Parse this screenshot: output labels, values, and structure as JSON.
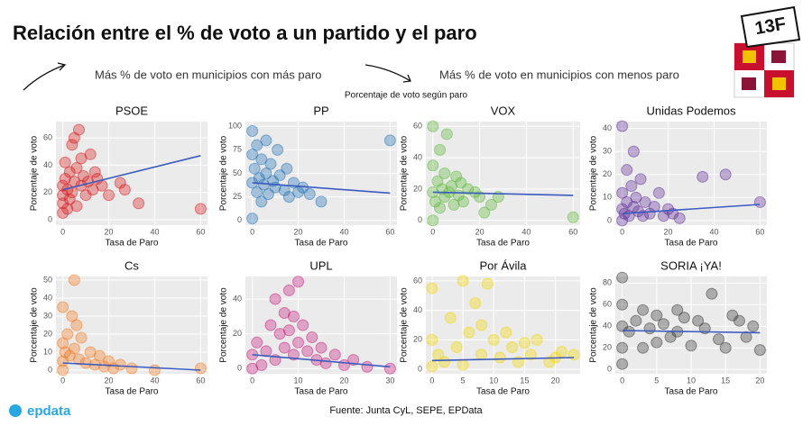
{
  "header": {
    "title": "Relación entre el % de voto a un partido y el paro",
    "note_left": "Más % de voto en municipios con más paro",
    "note_right": "Más % de voto en municipios con menos paro",
    "figure_title": "Porcentaje de voto según paro",
    "logo": "13F"
  },
  "footer": {
    "source": "Fuente: Junta CyL, SEPE, EPData",
    "brand": "epdata"
  },
  "chart_data": [
    {
      "type": "scatter",
      "title": "PSOE",
      "xlabel": "Tasa de Paro",
      "ylabel": "Porcentaje de voto",
      "color": "#d7191c",
      "xlim": [
        -3,
        63
      ],
      "xticks": [
        0,
        20,
        40,
        60
      ],
      "ylim": [
        -4,
        72
      ],
      "yticks": [
        0,
        20,
        40,
        60
      ],
      "x": [
        0,
        0,
        0,
        0,
        1,
        1,
        2,
        2,
        3,
        3,
        4,
        4,
        5,
        5,
        6,
        6,
        7,
        8,
        8,
        9,
        10,
        11,
        12,
        13,
        14,
        15,
        17,
        20,
        25,
        27,
        33,
        60
      ],
      "values": [
        5,
        12,
        18,
        25,
        30,
        42,
        8,
        22,
        15,
        35,
        20,
        55,
        28,
        60,
        10,
        38,
        66,
        25,
        45,
        32,
        18,
        28,
        48,
        22,
        35,
        30,
        25,
        18,
        27,
        22,
        12,
        8
      ],
      "trend": {
        "color": "#3b5bc0",
        "x": [
          0,
          60
        ],
        "values": [
          22,
          47
        ]
      }
    },
    {
      "type": "scatter",
      "title": "PP",
      "xlabel": "Tasa de Paro",
      "ylabel": "Porcentaje de voto",
      "color": "#1f6fb5",
      "xlim": [
        -3,
        63
      ],
      "xticks": [
        0,
        20,
        40,
        60
      ],
      "ylim": [
        -5,
        105
      ],
      "yticks": [
        0,
        25,
        50,
        75,
        100
      ],
      "x": [
        0,
        0,
        0,
        0,
        1,
        2,
        2,
        3,
        4,
        4,
        5,
        6,
        6,
        7,
        8,
        9,
        10,
        11,
        12,
        14,
        15,
        16,
        18,
        20,
        22,
        25,
        30,
        60
      ],
      "values": [
        2,
        40,
        70,
        95,
        55,
        30,
        80,
        45,
        20,
        65,
        38,
        50,
        85,
        28,
        60,
        42,
        35,
        75,
        48,
        32,
        55,
        25,
        40,
        30,
        35,
        28,
        20,
        85
      ],
      "trend": {
        "color": "#3b5bc0",
        "x": [
          0,
          60
        ],
        "values": [
          40,
          29
        ]
      }
    },
    {
      "type": "scatter",
      "title": "VOX",
      "xlabel": "Tasa de Paro",
      "ylabel": "Porcentaje de voto",
      "color": "#5cb83a",
      "xlim": [
        -3,
        63
      ],
      "xticks": [
        0,
        20,
        40,
        60
      ],
      "ylim": [
        -3,
        63
      ],
      "yticks": [
        0,
        20,
        40,
        60
      ],
      "x": [
        0,
        0,
        0,
        0,
        1,
        2,
        3,
        3,
        4,
        5,
        5,
        6,
        7,
        8,
        9,
        10,
        11,
        12,
        13,
        15,
        18,
        20,
        22,
        25,
        28,
        60
      ],
      "values": [
        0,
        18,
        35,
        60,
        12,
        25,
        8,
        45,
        20,
        15,
        30,
        55,
        18,
        22,
        10,
        28,
        16,
        24,
        12,
        20,
        18,
        15,
        5,
        10,
        15,
        2
      ],
      "trend": {
        "color": "#3b5bc0",
        "x": [
          0,
          60
        ],
        "values": [
          18,
          16
        ]
      }
    },
    {
      "type": "scatter",
      "title": "Unidas Podemos",
      "xlabel": "Tasa de Paro",
      "ylabel": "Porcentaje de voto",
      "color": "#5e2c99",
      "xlim": [
        -3,
        63
      ],
      "xticks": [
        0,
        20,
        40,
        60
      ],
      "ylim": [
        -2,
        43
      ],
      "yticks": [
        0,
        10,
        20,
        30,
        40
      ],
      "x": [
        0,
        0,
        0,
        0,
        1,
        2,
        2,
        3,
        4,
        5,
        5,
        6,
        7,
        8,
        9,
        10,
        12,
        14,
        16,
        18,
        20,
        22,
        25,
        35,
        45,
        60
      ],
      "values": [
        0,
        5,
        12,
        41,
        3,
        8,
        22,
        2,
        15,
        6,
        30,
        10,
        4,
        18,
        2,
        8,
        3,
        6,
        12,
        2,
        5,
        3,
        1,
        19,
        20,
        8
      ],
      "trend": {
        "color": "#3b5bc0",
        "x": [
          0,
          60
        ],
        "values": [
          3,
          7
        ]
      }
    },
    {
      "type": "scatter",
      "title": "Cs",
      "xlabel": "Tasa de Paro",
      "ylabel": "Porcentaje de voto",
      "color": "#f47920",
      "xlim": [
        -3,
        63
      ],
      "xticks": [
        0,
        20,
        40,
        60
      ],
      "ylim": [
        -2,
        52
      ],
      "yticks": [
        0,
        10,
        20,
        30,
        40,
        50
      ],
      "x": [
        0,
        0,
        0,
        0,
        1,
        2,
        3,
        4,
        5,
        5,
        6,
        7,
        8,
        10,
        12,
        14,
        16,
        18,
        20,
        22,
        25,
        30,
        40,
        60
      ],
      "values": [
        0,
        5,
        15,
        35,
        10,
        20,
        8,
        30,
        50,
        12,
        25,
        6,
        18,
        4,
        10,
        3,
        8,
        2,
        5,
        1,
        3,
        1,
        0,
        1
      ],
      "trend": {
        "color": "#3b5bc0",
        "x": [
          0,
          60
        ],
        "values": [
          4,
          0
        ]
      }
    },
    {
      "type": "scatter",
      "title": "UPL",
      "xlabel": "Tasa de Paro",
      "ylabel": "Porcentaje de voto",
      "color": "#c51b7d",
      "xlim": [
        -1.5,
        31.5
      ],
      "xticks": [
        0,
        10,
        20,
        30
      ],
      "ylim": [
        -3,
        53
      ],
      "yticks": [
        0,
        20,
        40
      ],
      "x": [
        0,
        0,
        1,
        2,
        3,
        4,
        5,
        5,
        6,
        7,
        7,
        8,
        8,
        9,
        9,
        10,
        10,
        11,
        12,
        13,
        14,
        15,
        16,
        18,
        20,
        22,
        25,
        30
      ],
      "values": [
        0,
        8,
        15,
        2,
        10,
        25,
        5,
        40,
        20,
        12,
        32,
        45,
        22,
        8,
        30,
        50,
        15,
        25,
        10,
        18,
        5,
        12,
        3,
        8,
        2,
        5,
        1,
        0
      ],
      "trend": {
        "color": "#3b5bc0",
        "x": [
          0,
          30
        ],
        "values": [
          8,
          1
        ]
      }
    },
    {
      "type": "scatter",
      "title": "Por Ávila",
      "xlabel": "Tasa de Paro",
      "ylabel": "Porcentaje de voto",
      "color": "#f2d600",
      "xlim": [
        -1,
        24
      ],
      "xticks": [
        0,
        5,
        10,
        15,
        20
      ],
      "ylim": [
        -3,
        63
      ],
      "yticks": [
        0,
        20,
        40,
        60
      ],
      "x": [
        0,
        0,
        0,
        1,
        2,
        3,
        4,
        5,
        5,
        6,
        7,
        8,
        8,
        9,
        10,
        11,
        12,
        13,
        14,
        15,
        16,
        17,
        19,
        20,
        21,
        23
      ],
      "values": [
        2,
        20,
        55,
        10,
        5,
        35,
        15,
        60,
        3,
        25,
        45,
        10,
        30,
        58,
        20,
        8,
        25,
        15,
        5,
        18,
        10,
        20,
        5,
        8,
        12,
        10
      ],
      "trend": {
        "color": "#3b5bc0",
        "x": [
          0,
          23
        ],
        "values": [
          6,
          8
        ]
      }
    },
    {
      "type": "scatter",
      "title": "SORIA ¡YA!",
      "xlabel": "Tasa de Paro",
      "ylabel": "Porcentaje de voto",
      "color": "#333333",
      "xlim": [
        -1,
        21
      ],
      "xticks": [
        0,
        5,
        10,
        15,
        20
      ],
      "ylim": [
        -4,
        86
      ],
      "yticks": [
        0,
        20,
        40,
        60,
        80
      ],
      "x": [
        0,
        0,
        0,
        0,
        0,
        1,
        2,
        3,
        3,
        4,
        5,
        5,
        6,
        7,
        8,
        8,
        9,
        10,
        11,
        12,
        13,
        14,
        15,
        16,
        17,
        18,
        19,
        20
      ],
      "values": [
        5,
        20,
        40,
        60,
        85,
        35,
        45,
        20,
        55,
        38,
        25,
        50,
        42,
        30,
        55,
        35,
        48,
        22,
        45,
        38,
        70,
        28,
        20,
        50,
        45,
        30,
        40,
        18
      ],
      "trend": {
        "color": "#3b5bc0",
        "x": [
          0,
          20
        ],
        "values": [
          36,
          34
        ]
      }
    }
  ]
}
